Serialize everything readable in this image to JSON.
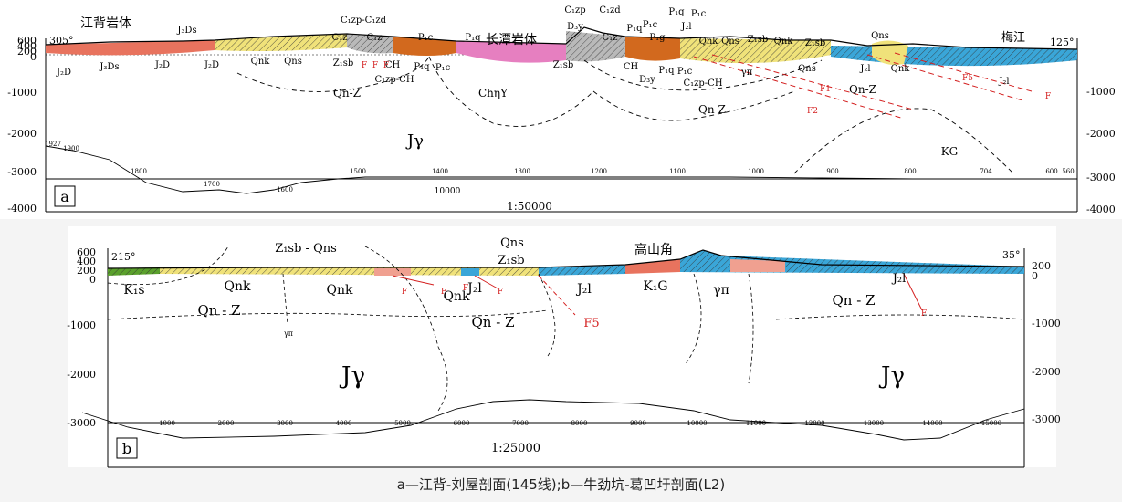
{
  "caption": "a—江背-刘屋剖面(145线);b—牛劲坑-葛凹圩剖面(L2)",
  "panel_a": {
    "label": "a",
    "scale": "1:50000",
    "azimuth_left": "305°",
    "azimuth_right": "125°",
    "y_left": [
      "600",
      "400",
      "200",
      "0",
      "-1000",
      "-2000",
      "-3000",
      "-4000"
    ],
    "y_right": [
      "-1000",
      "-2000",
      "-3000",
      "-4000"
    ],
    "distance_ticks": [
      "1927",
      "1900",
      "1800",
      "1700",
      "1600",
      "1500",
      "1400",
      "1300",
      "1200",
      "1100",
      "1000",
      "900",
      "800",
      "704",
      "600",
      "560"
    ],
    "grid_value": "10000",
    "place_names": [
      "江背岩体",
      "长潭岩体",
      "梅江"
    ],
    "units_top": [
      "J₃Ds",
      "C₁zp-C₁zd",
      "C₁z",
      "C₁z",
      "P₁c",
      "P₁q",
      "D₃y",
      "C₁zp",
      "C₁zd",
      "C₁z",
      "P₁q",
      "P₁c",
      "P₁g",
      "P₁q",
      "J₂l",
      "P₁c",
      "Qnk",
      "Qns",
      "Z₁sb",
      "Qnk",
      "Z₁sb",
      "Qns"
    ],
    "units_below": [
      "J₂D",
      "J₃Ds",
      "J₂D",
      "J₂D",
      "Qnk",
      "Qns",
      "Z₁sb",
      "CH",
      "P₁q",
      "P₁c",
      "C₁zp-CH",
      "Z₁sb",
      "CH",
      "D₃y",
      "P₁q",
      "P₁c",
      "C₁zp-CH",
      "γπ",
      "Qns",
      "J₂l",
      "Qnk",
      "J₂l"
    ],
    "faults": [
      "F",
      "F",
      "F",
      "F1",
      "F2",
      "F5",
      "F"
    ],
    "bodies": [
      "Qn-Z",
      "ChηΥ",
      "Jγ",
      "Qn-Z",
      "Qn-Z",
      "KG"
    ]
  },
  "panel_b": {
    "label": "b",
    "scale": "1:25000",
    "azimuth_left": "215°",
    "azimuth_right": "35°",
    "y_left": [
      "600",
      "400",
      "200",
      "0",
      "-1000",
      "-2000",
      "-3000"
    ],
    "y_right": [
      "200",
      "0",
      "-1000",
      "-2000",
      "-3000"
    ],
    "distance_ticks": [
      "1000",
      "2000",
      "3000",
      "4000",
      "5000",
      "6000",
      "7000",
      "8000",
      "9000",
      "10000",
      "11000",
      "12000",
      "13000",
      "14000",
      "15000"
    ],
    "place_names": [
      "高山角"
    ],
    "units_top": [
      "Z₁sb - Qns",
      "Qns",
      "Z₁sb"
    ],
    "units_below": [
      "K₁s",
      "Qnk",
      "Qnk",
      "Qnk",
      "J₂l",
      "J₂l",
      "K₁G",
      "γπ",
      "J₂l"
    ],
    "faults": [
      "F",
      "F",
      "F",
      "F",
      "F5",
      "F"
    ],
    "bodies": [
      "Qn - Z",
      "Qn - Z",
      "Qn - Z",
      "Jγ",
      "Jγ",
      "γπ"
    ]
  },
  "colors": {
    "red_unit": "#e8735e",
    "yellow_unit": "#f0e27a",
    "orange_unit": "#d2691e",
    "pink_unit": "#e67fc0",
    "blue_unit": "#3aa6d8",
    "green_unit": "#5aa02c",
    "grey_unit": "#b9b9b9",
    "salmon_unit": "#f0a090",
    "fault": "#d42020"
  }
}
